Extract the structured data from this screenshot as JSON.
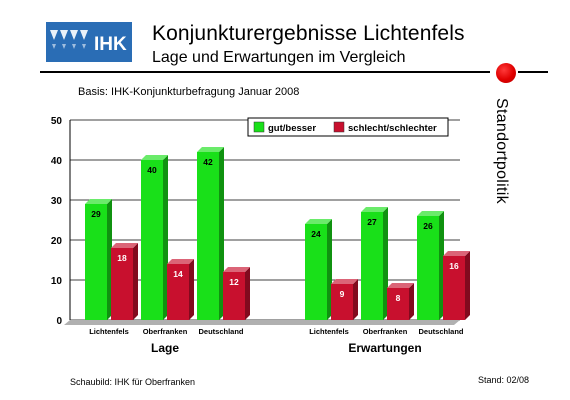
{
  "header": {
    "logo_text": "IHK",
    "title": "Konjunkturergebnisse Lichtenfels",
    "subtitle": "Lage und Erwartungen im Vergleich",
    "side_label": "Standortpolitik"
  },
  "basis": "Basis: IHK-Konjunkturbefragung Januar 2008",
  "footer": {
    "source": "Schaubild: IHK für Oberfranken",
    "date": "Stand: 02/08"
  },
  "colors": {
    "green": "#19e019",
    "red": "#c8102e",
    "accent_dot": "#e00000",
    "logo_blue": "#2a6db5"
  },
  "chart_data": {
    "type": "bar",
    "groups": [
      {
        "label": "Lage",
        "categories": [
          "Lichtenfels",
          "Oberfranken",
          "Deutschland"
        ]
      },
      {
        "label": "Erwartungen",
        "categories": [
          "Lichtenfels",
          "Oberfranken",
          "Deutschland"
        ]
      }
    ],
    "series": [
      {
        "name": "gut/besser",
        "color": "#19e019",
        "values": [
          29,
          40,
          42,
          24,
          27,
          26
        ]
      },
      {
        "name": "schlecht/schlechter",
        "color": "#c8102e",
        "values": [
          18,
          14,
          12,
          9,
          8,
          16
        ]
      }
    ],
    "ylim": [
      0,
      50
    ],
    "yticks": [
      0,
      10,
      20,
      30,
      40,
      50
    ],
    "grid": true,
    "legend": "top-right",
    "data_labels": true
  }
}
